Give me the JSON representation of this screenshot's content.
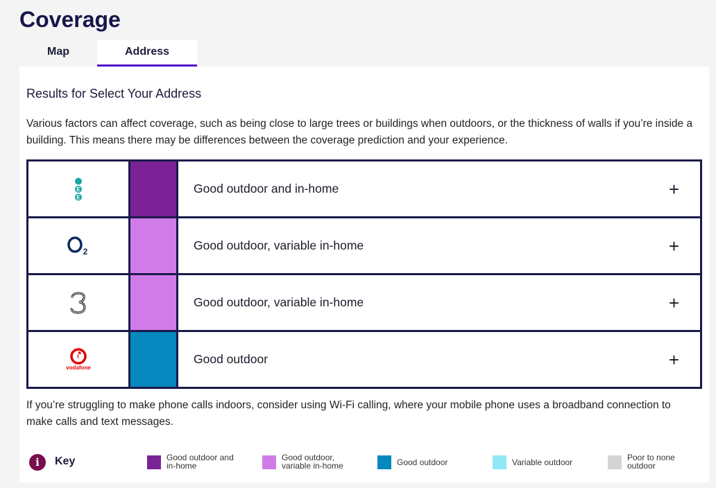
{
  "page": {
    "title": "Coverage"
  },
  "tabs": [
    {
      "label": "Map",
      "active": false
    },
    {
      "label": "Address",
      "active": true
    }
  ],
  "results": {
    "heading": "Results for Select Your Address",
    "intro": "Various factors can affect coverage, such as being close to large trees or buildings when outdoors, or the thickness of walls if you’re inside a building. This means there may be differences between the coverage prediction and your experience.",
    "footnote": "If you’re struggling to make phone calls indoors, consider using Wi-Fi calling, where your mobile phone uses a broadband connection to make calls and text messages."
  },
  "operators": [
    {
      "logo": "ee-logo",
      "coverage": "Good outdoor and in-home",
      "color": "#7b2396"
    },
    {
      "logo": "o2-logo",
      "coverage": "Good outdoor, variable in-home",
      "color": "#d07ce8"
    },
    {
      "logo": "three-logo",
      "coverage": "Good outdoor, variable in-home",
      "color": "#d07ce8"
    },
    {
      "logo": "vodafone-logo",
      "logo_text": "vodafone",
      "coverage": "Good outdoor",
      "color": "#0488bd"
    }
  ],
  "expand_symbol": "+",
  "key": {
    "title": "Key",
    "info_symbol": "i",
    "items": [
      {
        "label_line1": "Good outdoor and",
        "label_line2": "in-home",
        "color": "#7b2396"
      },
      {
        "label_line1": "Good outdoor,",
        "label_line2": "variable in-home",
        "color": "#d07ce8"
      },
      {
        "label_line1": "Good outdoor",
        "label_line2": "",
        "color": "#0488bd"
      },
      {
        "label_line1": "Variable outdoor",
        "label_line2": "",
        "color": "#8fe8f4"
      },
      {
        "label_line1": "Poor to none",
        "label_line2": "outdoor",
        "color": "#d4d4d4"
      }
    ]
  }
}
